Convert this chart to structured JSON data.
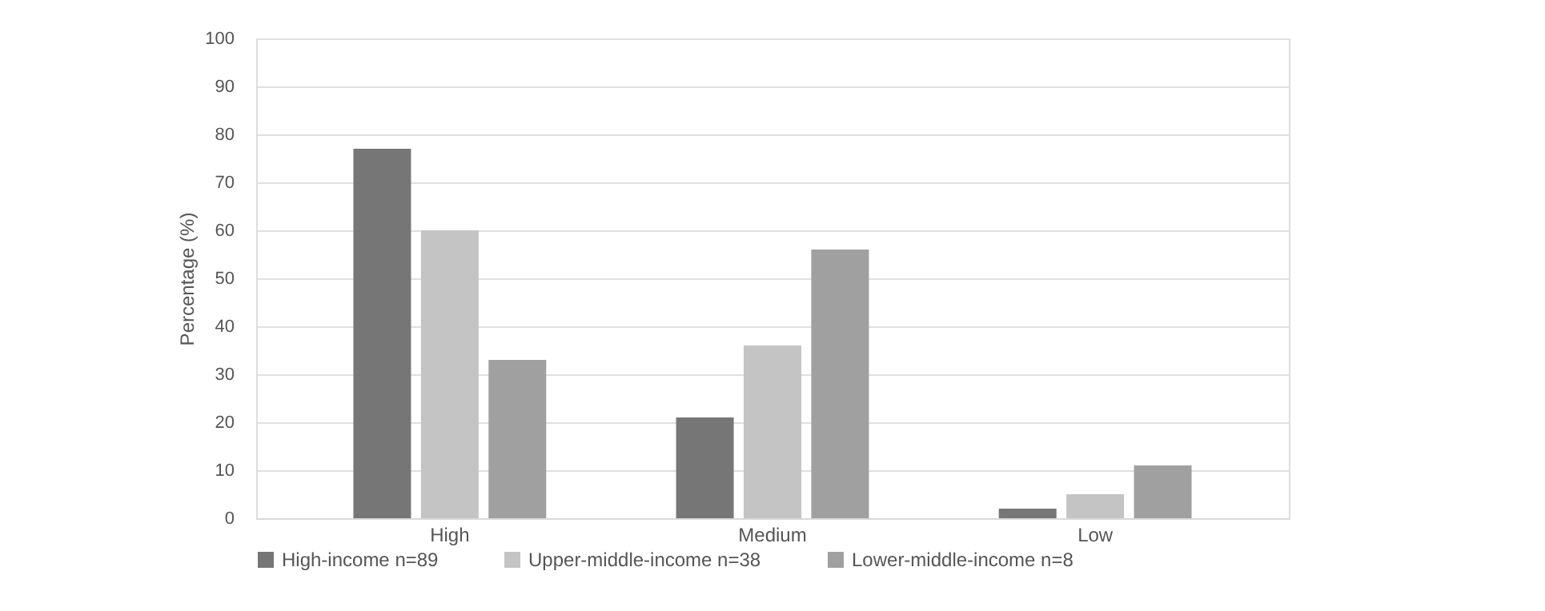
{
  "chart_data": {
    "type": "bar",
    "ylabel": "Percentage (%)",
    "categories": [
      "High",
      "Medium",
      "Low"
    ],
    "series": [
      {
        "name": "High-income n=89",
        "color": "#767676",
        "values": [
          77,
          21,
          2
        ]
      },
      {
        "name": "Upper-middle-income n=38",
        "color": "#c4c4c4",
        "values": [
          60,
          36,
          5
        ]
      },
      {
        "name": "Lower-middle-income n=8",
        "color": "#a0a0a0",
        "values": [
          33,
          56,
          11
        ]
      }
    ],
    "ylim": [
      0,
      100
    ],
    "yticks": [
      0,
      10,
      20,
      30,
      40,
      50,
      60,
      70,
      80,
      90,
      100
    ],
    "grid": "y",
    "legend": "bottom"
  }
}
